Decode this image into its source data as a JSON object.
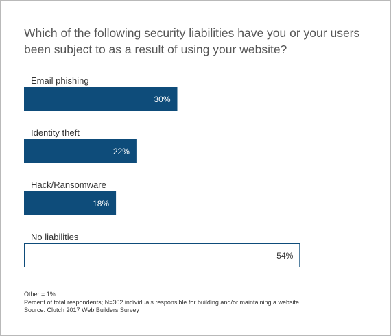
{
  "chart_data": {
    "type": "bar",
    "orientation": "horizontal",
    "title": "Which of the following security liabilities have you or your users been subject to as a result of using your website?",
    "categories": [
      "Email phishing",
      "Identity theft",
      "Hack/Ransomware",
      "No liabilities"
    ],
    "values": [
      30,
      22,
      18,
      54
    ],
    "value_labels": [
      "30%",
      "22%",
      "18%",
      "54%"
    ],
    "xlim": [
      0,
      100
    ],
    "grid": false,
    "legend": "none",
    "colors": {
      "bar": "#0e4c7a",
      "highlight_fill": "#ffffff",
      "highlight_stroke": "#0e4c7a",
      "label_on_bar": "#ffffff",
      "label_on_light": "#333333"
    },
    "highlight_index": 3
  },
  "notes": {
    "other": "Other = 1%",
    "base": "Percent of total respondents; N=302 individuals responsible for building and/or maintaining a website",
    "source": "Source: Clutch 2017 Web Builders Survey"
  }
}
